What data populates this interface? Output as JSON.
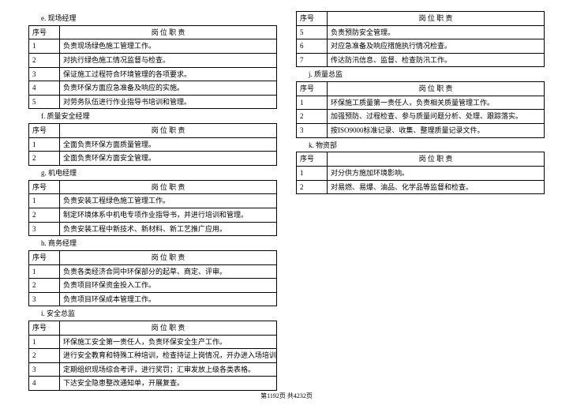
{
  "headers": {
    "seq": "序号",
    "duty": "岗 位 职 责"
  },
  "footer": "第1192页  共4232页",
  "left": {
    "sections": [
      {
        "label": "e.  现场经理",
        "rows": [
          {
            "n": "1",
            "t": "负责现场绿色施工管理工作。"
          },
          {
            "n": "2",
            "t": "对执行绿色施工情况监督与检查。"
          },
          {
            "n": "3",
            "t": "保证施工过程符合环境管理的各项要求。"
          },
          {
            "n": "4",
            "t": "负责环保方面应急准备及响应的实施。"
          },
          {
            "n": "5",
            "t": "对劳务队伍进行作业指导书培训和管理。"
          }
        ]
      },
      {
        "label": "f.  质量安全经理",
        "rows": [
          {
            "n": "1",
            "t": "全面负责环保方面质量管理。"
          },
          {
            "n": "2",
            "t": "全面负责环保方面安全管理。"
          }
        ]
      },
      {
        "label": "g.  机电经理",
        "rows": [
          {
            "n": "1",
            "t": "负责安装工程绿色施工管理工作。"
          },
          {
            "n": "2",
            "t": "制定环境体系中机电专项作业指导书，并进行培训和管理。"
          },
          {
            "n": "3",
            "t": "负责安装工程中新技术、新材料、新工艺推广应用。"
          }
        ]
      },
      {
        "label": "h.  商务经理",
        "rows": [
          {
            "n": "1",
            "t": "负责各类经济合同中环保部分的起草、商定、评审。"
          },
          {
            "n": "2",
            "t": "负责项目环保资金投入工作。"
          },
          {
            "n": "3",
            "t": "负责项目环保成本管理工作。"
          }
        ]
      },
      {
        "label": "i.  安全总监",
        "rows": [
          {
            "n": "1",
            "t": "环保施工安全第一责任人，负责环保安全生产工作。"
          },
          {
            "n": "2",
            "t": "进行安全教育和特殊工种培训，检查持证上岗情况，开办进入场培训。"
          },
          {
            "n": "3",
            "t": "定期组织现场综合考评，进行奖罚；汇审发放上级各类表格。"
          },
          {
            "n": "4",
            "t": "下达安全隐患整改通知单，开展复查。"
          }
        ]
      }
    ]
  },
  "right": {
    "sections": [
      {
        "label": "",
        "continuation": true,
        "rows": [
          {
            "n": "5",
            "t": "负责预防安全管理。"
          },
          {
            "n": "6",
            "t": "对应急准备及响应措施执行情况检查。"
          },
          {
            "n": "7",
            "t": "传达防汛信息、监督、检查防汛工作。"
          }
        ]
      },
      {
        "label": "j.  质量总监",
        "rows": [
          {
            "n": "1",
            "t": "环保施工质量第一责任人，负责相关质量管理工作。"
          },
          {
            "n": "2",
            "t": "加强预防、过程检查、参与质量问题分析、处理、跟踪落实。"
          },
          {
            "n": "3",
            "t": "按ISO9000标准记录、收集、整理质量记录文件。"
          }
        ]
      },
      {
        "label": "k.  物资部",
        "rows": [
          {
            "n": "1",
            "t": "对分供方施加环境影响。"
          },
          {
            "n": "2",
            "t": "对易燃、易爆、油品、化学品等监督和检查。"
          }
        ]
      }
    ]
  }
}
